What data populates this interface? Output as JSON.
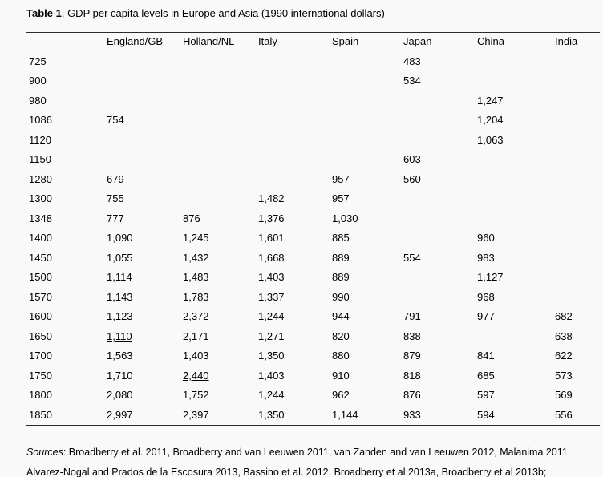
{
  "page": {
    "title_bold": "Table 1",
    "title_rest": ". GDP per capita levels in Europe and Asia (1990 international dollars)"
  },
  "chart_data": {
    "type": "table",
    "title": "GDP per capita levels in Europe and Asia (1990 international dollars)",
    "unit": "1990 international dollars",
    "year_column_header": "",
    "columns": [
      "England/GB",
      "Holland/NL",
      "Italy",
      "Spain",
      "Japan",
      "China",
      "India"
    ],
    "rows": [
      {
        "year": "725",
        "cells": [
          "",
          "",
          "",
          "",
          "483",
          "",
          ""
        ]
      },
      {
        "year": "900",
        "cells": [
          "",
          "",
          "",
          "",
          "534",
          "",
          ""
        ]
      },
      {
        "year": "980",
        "cells": [
          "",
          "",
          "",
          "",
          "",
          "1,247",
          ""
        ]
      },
      {
        "year": "1086",
        "cells": [
          "754",
          "",
          "",
          "",
          "",
          "1,204",
          ""
        ]
      },
      {
        "year": "1120",
        "cells": [
          "",
          "",
          "",
          "",
          "",
          "1,063",
          ""
        ]
      },
      {
        "year": "1150",
        "cells": [
          "",
          "",
          "",
          "",
          "603",
          "",
          ""
        ]
      },
      {
        "year": "1280",
        "cells": [
          "679",
          "",
          "",
          "957",
          "560",
          "",
          ""
        ]
      },
      {
        "year": "1300",
        "cells": [
          "755",
          "",
          "1,482",
          "957",
          "",
          "",
          ""
        ]
      },
      {
        "year": "1348",
        "cells": [
          "777",
          "876",
          "1,376",
          "1,030",
          "",
          "",
          ""
        ]
      },
      {
        "year": "1400",
        "cells": [
          "1,090",
          "1,245",
          "1,601",
          "885",
          "",
          "960",
          ""
        ]
      },
      {
        "year": "1450",
        "cells": [
          "1,055",
          "1,432",
          "1,668",
          "889",
          "554",
          "983",
          ""
        ]
      },
      {
        "year": "1500",
        "cells": [
          "1,114",
          "1,483",
          "1,403",
          "889",
          "",
          "1,127",
          ""
        ]
      },
      {
        "year": "1570",
        "cells": [
          "1,143",
          "1,783",
          "1,337",
          "990",
          "",
          "968",
          ""
        ]
      },
      {
        "year": "1600",
        "cells": [
          "1,123",
          "2,372",
          "1,244",
          "944",
          "791",
          "977",
          "682"
        ]
      },
      {
        "year": "1650",
        "cells": [
          "1,110",
          "2,171",
          "1,271",
          "820",
          "838",
          "",
          "638"
        ],
        "underline": [
          0
        ]
      },
      {
        "year": "1700",
        "cells": [
          "1,563",
          "1,403",
          "1,350",
          "880",
          "879",
          "841",
          "622"
        ]
      },
      {
        "year": "1750",
        "cells": [
          "1,710",
          "2,440",
          "1,403",
          "910",
          "818",
          "685",
          "573"
        ],
        "underline": [
          1
        ]
      },
      {
        "year": "1800",
        "cells": [
          "2,080",
          "1,752",
          "1,244",
          "962",
          "876",
          "597",
          "569"
        ]
      },
      {
        "year": "1850",
        "cells": [
          "2,997",
          "2,397",
          "1,350",
          "1,144",
          "933",
          "594",
          "556"
        ]
      }
    ]
  },
  "footer": {
    "sources_label": "Sources",
    "text": ": Broadberry et al. 2011, Broadberry and van Leeuwen 2011, van Zanden and van Leeuwen 2012, Malanima 2011, Álvarez-Nogal and Prados de la Escosura 2013, Bassino et al. 2012, Broadberry et al 2013a, Broadberry et al 2013b;"
  }
}
